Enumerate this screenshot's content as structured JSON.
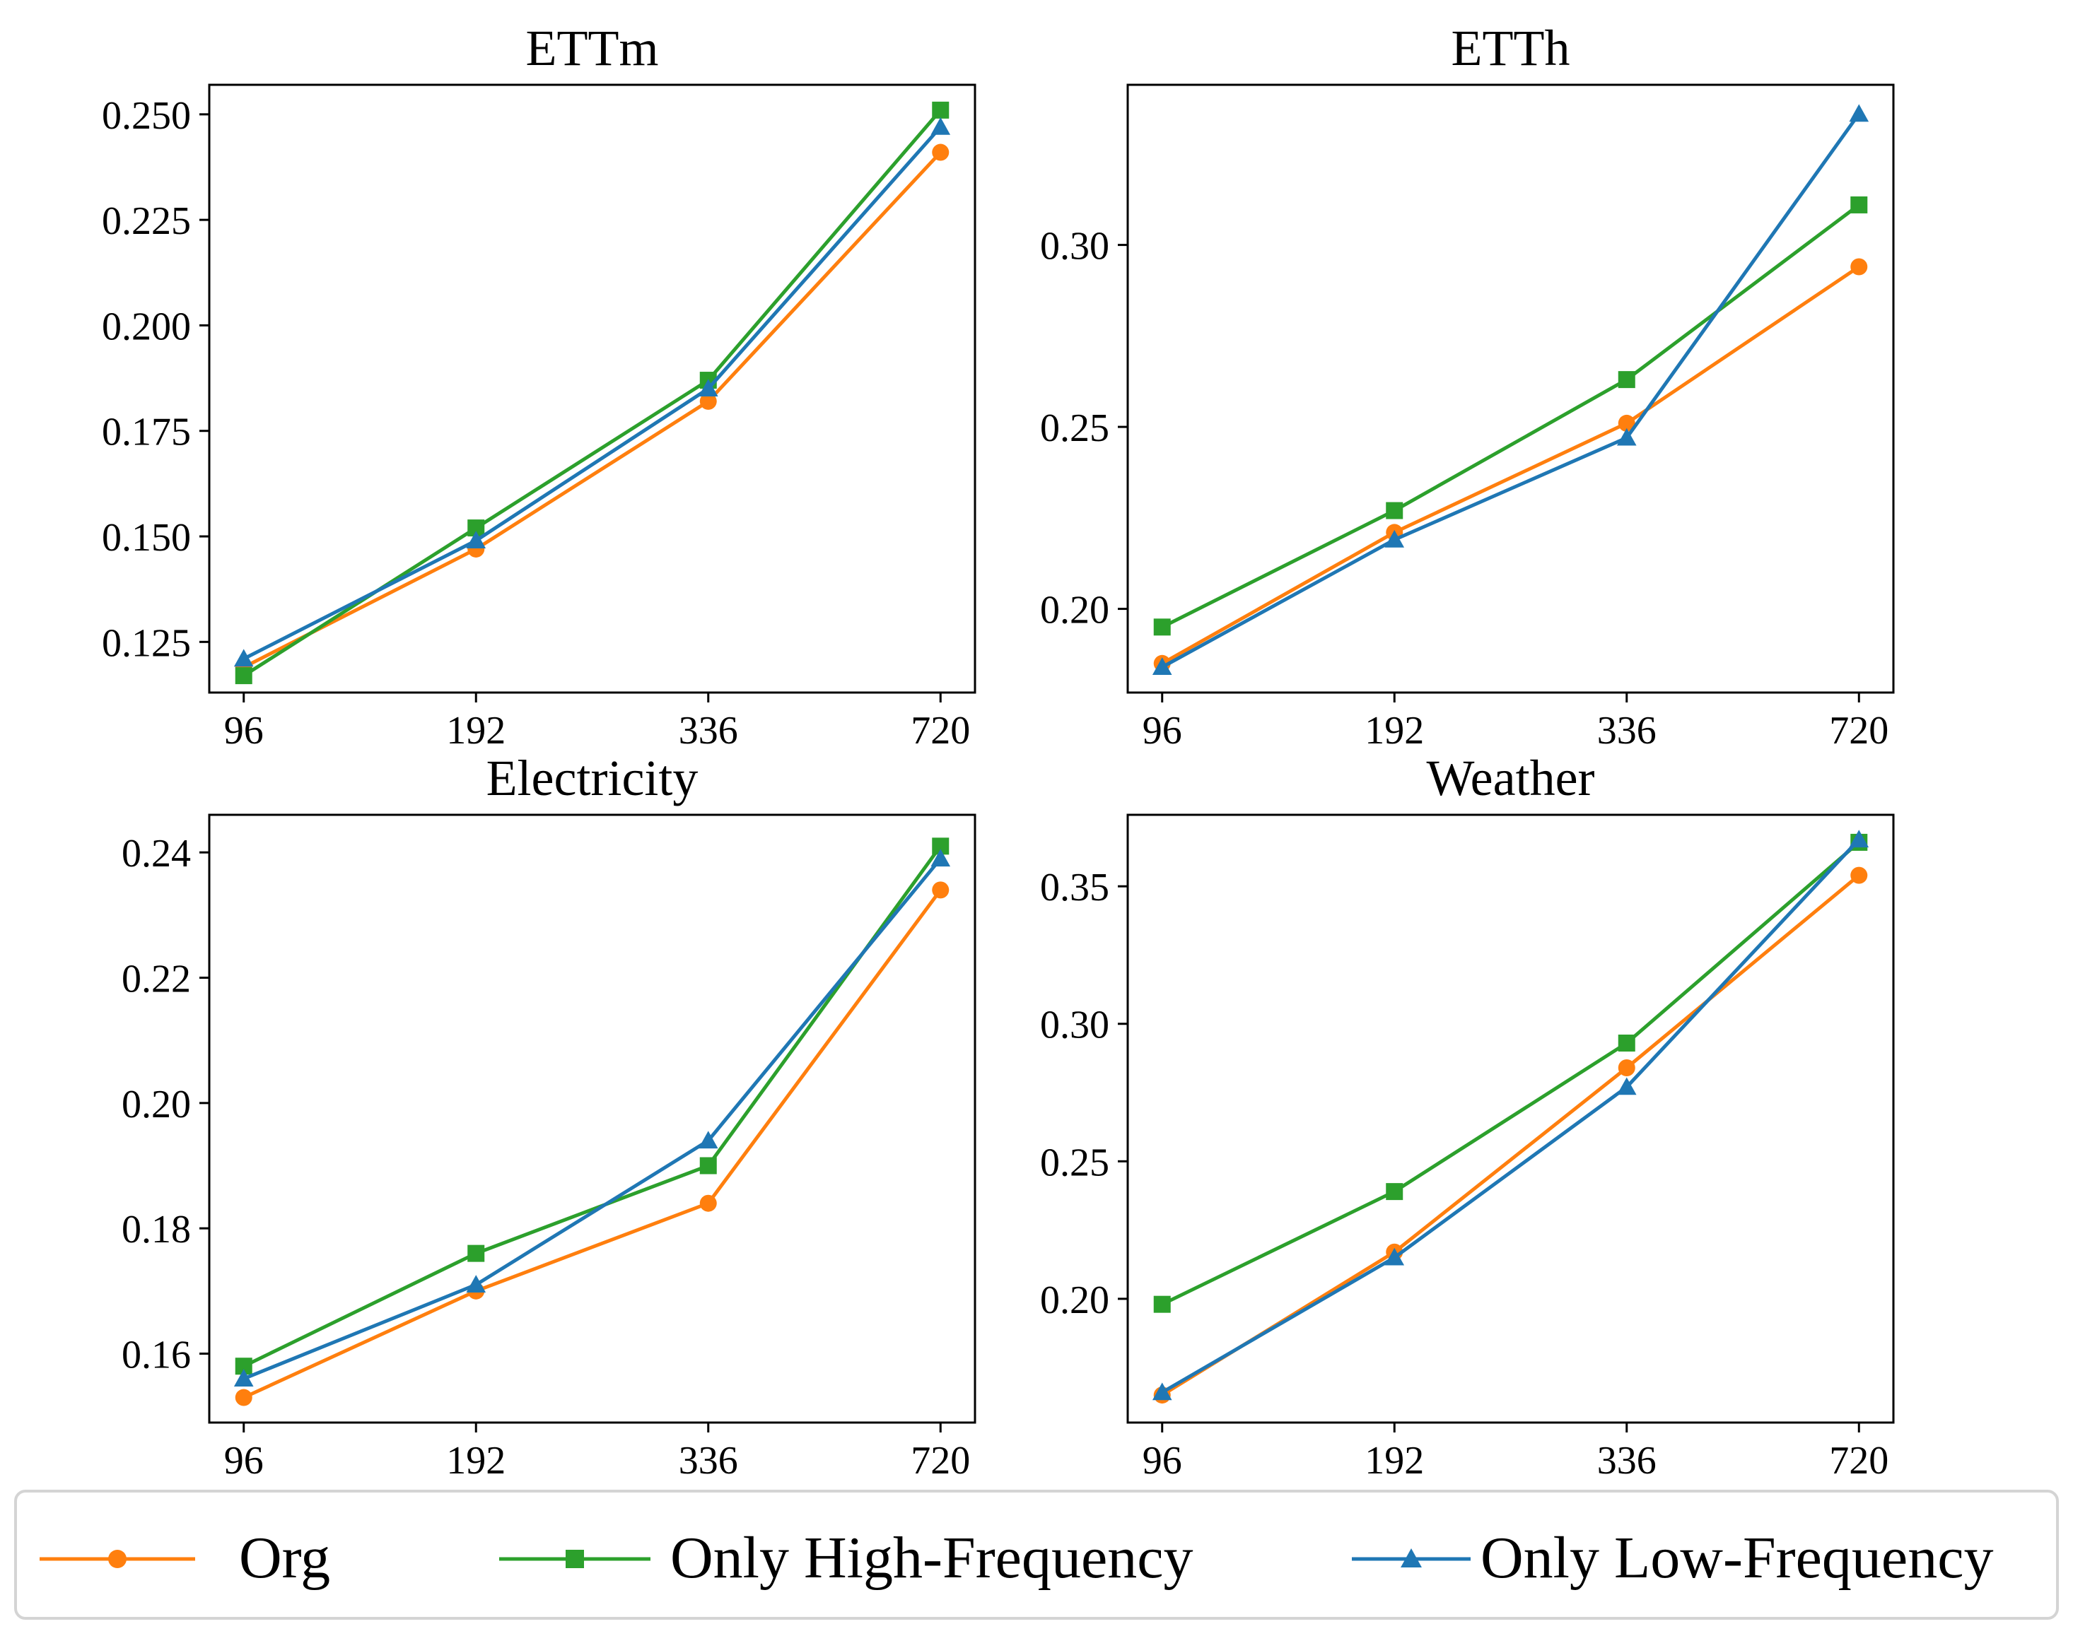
{
  "chart_data": [
    {
      "type": "line",
      "title": "ETTm",
      "categories": [
        "96",
        "192",
        "336",
        "720"
      ],
      "yticks": [
        "0.125",
        "0.150",
        "0.175",
        "0.200",
        "0.225",
        "0.250"
      ],
      "ylim": [
        0.113,
        0.257
      ],
      "series": [
        {
          "name": "Org",
          "values": [
            0.119,
            0.147,
            0.182,
            0.241
          ]
        },
        {
          "name": "Only High-Frequency",
          "values": [
            0.117,
            0.152,
            0.187,
            0.251
          ]
        },
        {
          "name": "Only Low-Frequency",
          "values": [
            0.121,
            0.149,
            0.185,
            0.247
          ]
        }
      ]
    },
    {
      "type": "line",
      "title": "ETTh",
      "categories": [
        "96",
        "192",
        "336",
        "720"
      ],
      "yticks": [
        "0.20",
        "0.25",
        "0.30"
      ],
      "ylim": [
        0.177,
        0.344
      ],
      "series": [
        {
          "name": "Org",
          "values": [
            0.185,
            0.221,
            0.251,
            0.294
          ]
        },
        {
          "name": "Only High-Frequency",
          "values": [
            0.195,
            0.227,
            0.263,
            0.311
          ]
        },
        {
          "name": "Only Low-Frequency",
          "values": [
            0.184,
            0.219,
            0.247,
            0.336
          ]
        }
      ]
    },
    {
      "type": "line",
      "title": "Electricity",
      "categories": [
        "96",
        "192",
        "336",
        "720"
      ],
      "yticks": [
        "0.16",
        "0.18",
        "0.20",
        "0.22",
        "0.24"
      ],
      "ylim": [
        0.149,
        0.246
      ],
      "series": [
        {
          "name": "Org",
          "values": [
            0.153,
            0.17,
            0.184,
            0.234
          ]
        },
        {
          "name": "Only High-Frequency",
          "values": [
            0.158,
            0.176,
            0.19,
            0.241
          ]
        },
        {
          "name": "Only Low-Frequency",
          "values": [
            0.156,
            0.171,
            0.194,
            0.239
          ]
        }
      ]
    },
    {
      "type": "line",
      "title": "Weather",
      "categories": [
        "96",
        "192",
        "336",
        "720"
      ],
      "yticks": [
        "0.20",
        "0.25",
        "0.30",
        "0.35"
      ],
      "ylim": [
        0.155,
        0.376
      ],
      "series": [
        {
          "name": "Org",
          "values": [
            0.165,
            0.217,
            0.284,
            0.354
          ]
        },
        {
          "name": "Only High-Frequency",
          "values": [
            0.198,
            0.239,
            0.293,
            0.366
          ]
        },
        {
          "name": "Only Low-Frequency",
          "values": [
            0.166,
            0.215,
            0.277,
            0.367
          ]
        }
      ]
    }
  ],
  "legend": [
    {
      "label": "Org",
      "color": "#ff7f0e",
      "marker": "circle"
    },
    {
      "label": "Only High-Frequency",
      "color": "#2ca02c",
      "marker": "square"
    },
    {
      "label": "Only Low-Frequency",
      "color": "#1f77b4",
      "marker": "triangle"
    }
  ]
}
